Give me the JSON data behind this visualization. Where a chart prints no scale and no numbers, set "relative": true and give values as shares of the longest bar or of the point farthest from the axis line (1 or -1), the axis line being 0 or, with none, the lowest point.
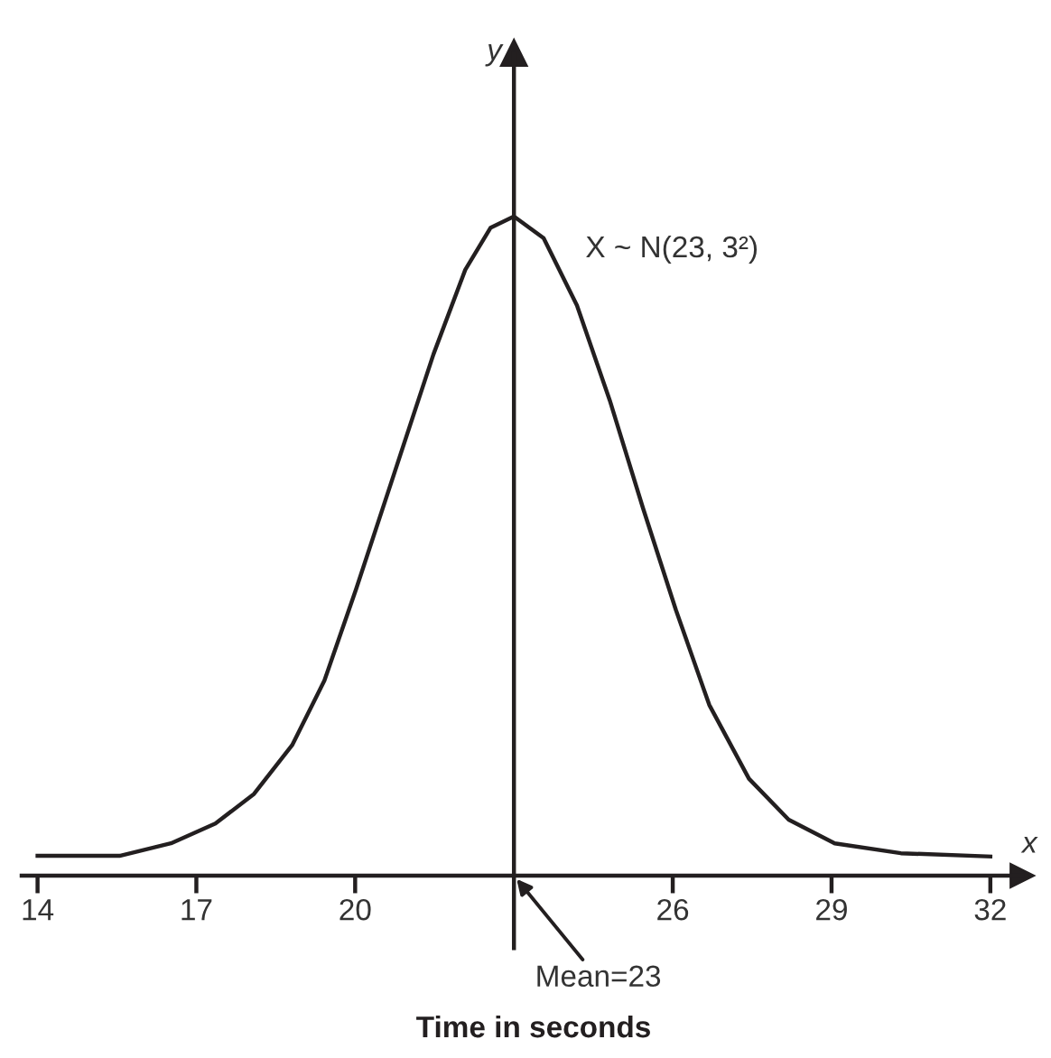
{
  "chart_data": {
    "type": "line",
    "relative": true,
    "xlabel": "Time in seconds",
    "ylabel": "y",
    "xlim": [
      13.7,
      32.6
    ],
    "xticks": [
      14,
      17,
      20,
      26,
      29,
      32
    ],
    "x": [
      14,
      15.55,
      16.52,
      17.36,
      18.09,
      18.81,
      19.42,
      20.02,
      20.75,
      21.48,
      22.08,
      22.56,
      23,
      23.56,
      24.19,
      24.81,
      25.44,
      26.06,
      26.69,
      27.44,
      28.19,
      29.06,
      30.31,
      32
    ],
    "series": [
      {
        "color": "#231f20",
        "values": [
          0.03,
          0.03,
          0.049,
          0.079,
          0.124,
          0.198,
          0.296,
          0.435,
          0.613,
          0.791,
          0.919,
          0.983,
          1.0,
          0.967,
          0.865,
          0.721,
          0.557,
          0.403,
          0.259,
          0.147,
          0.085,
          0.049,
          0.034,
          0.029
        ]
      }
    ],
    "ref_lines": [
      {
        "axis": "x",
        "value": 23,
        "color": "#231f20"
      }
    ],
    "annotations": [
      "x",
      "X ~ N(23, 3²)",
      {
        "text": "Mean=23",
        "x": 23,
        "y": 0
      }
    ],
    "grid": false,
    "legend": false,
    "marker": "none",
    "line_style": "solid"
  }
}
